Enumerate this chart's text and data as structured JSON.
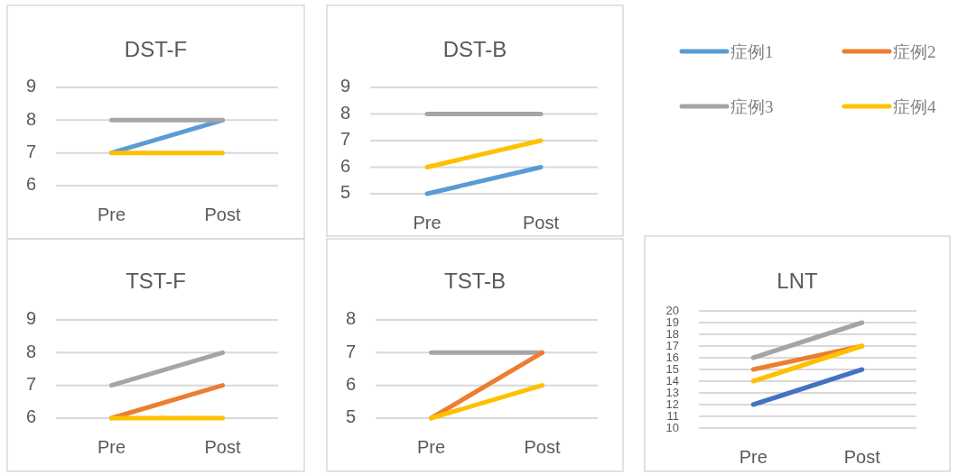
{
  "chart_data": [
    {
      "type": "line",
      "title": "DST-F",
      "categories": [
        "Pre",
        "Post"
      ],
      "ylim": [
        6,
        9
      ],
      "yticks": [
        6,
        7,
        8,
        9
      ],
      "grid": "y",
      "series": [
        {
          "color": "#5b9bd5",
          "values": [
            7,
            8
          ]
        },
        {
          "color": "#a5a5a5",
          "values": [
            8,
            8
          ]
        },
        {
          "color": "#ffc000",
          "values": [
            7,
            7
          ]
        }
      ]
    },
    {
      "type": "line",
      "title": "DST-B",
      "categories": [
        "Pre",
        "Post"
      ],
      "ylim": [
        5,
        9
      ],
      "yticks": [
        5,
        6,
        7,
        8,
        9
      ],
      "grid": "y",
      "legend": "right",
      "series": [
        {
          "name": "症例1",
          "color": "#5b9bd5",
          "values": [
            5,
            6
          ]
        },
        {
          "name": "症例2",
          "color": "#ed7d31",
          "values": [
            null,
            null
          ]
        },
        {
          "name": "症例3",
          "color": "#a5a5a5",
          "values": [
            8,
            8
          ]
        },
        {
          "name": "症例4",
          "color": "#ffc000",
          "values": [
            6,
            7
          ]
        }
      ]
    },
    {
      "type": "line",
      "title": "TST-F",
      "categories": [
        "Pre",
        "Post"
      ],
      "ylim": [
        6,
        9
      ],
      "yticks": [
        6,
        7,
        8,
        9
      ],
      "grid": "y",
      "series": [
        {
          "color": "#a5a5a5",
          "values": [
            7,
            8
          ]
        },
        {
          "color": "#ed7d31",
          "values": [
            6,
            7
          ]
        },
        {
          "color": "#ffc000",
          "values": [
            6,
            6
          ]
        }
      ]
    },
    {
      "type": "line",
      "title": "TST-B",
      "categories": [
        "Pre",
        "Post"
      ],
      "ylim": [
        5,
        8
      ],
      "yticks": [
        5,
        6,
        7,
        8
      ],
      "grid": "y",
      "series": [
        {
          "color": "#a5a5a5",
          "values": [
            7,
            7
          ]
        },
        {
          "color": "#ed7d31",
          "values": [
            5,
            7
          ]
        },
        {
          "color": "#ffc000",
          "values": [
            5,
            6
          ]
        }
      ]
    },
    {
      "type": "line",
      "title": "LNT",
      "categories": [
        "Pre",
        "Post"
      ],
      "ylim": [
        10,
        20
      ],
      "yticks": [
        10,
        11,
        12,
        13,
        14,
        15,
        16,
        17,
        18,
        19,
        20
      ],
      "grid": "y",
      "series": [
        {
          "color": "#4472c4",
          "values": [
            12,
            15
          ]
        },
        {
          "color": "#a5a5a5",
          "values": [
            16,
            19
          ]
        },
        {
          "color": "#ed7d31",
          "values": [
            15,
            17
          ]
        },
        {
          "color": "#ffc000",
          "values": [
            14,
            17
          ]
        }
      ]
    }
  ]
}
